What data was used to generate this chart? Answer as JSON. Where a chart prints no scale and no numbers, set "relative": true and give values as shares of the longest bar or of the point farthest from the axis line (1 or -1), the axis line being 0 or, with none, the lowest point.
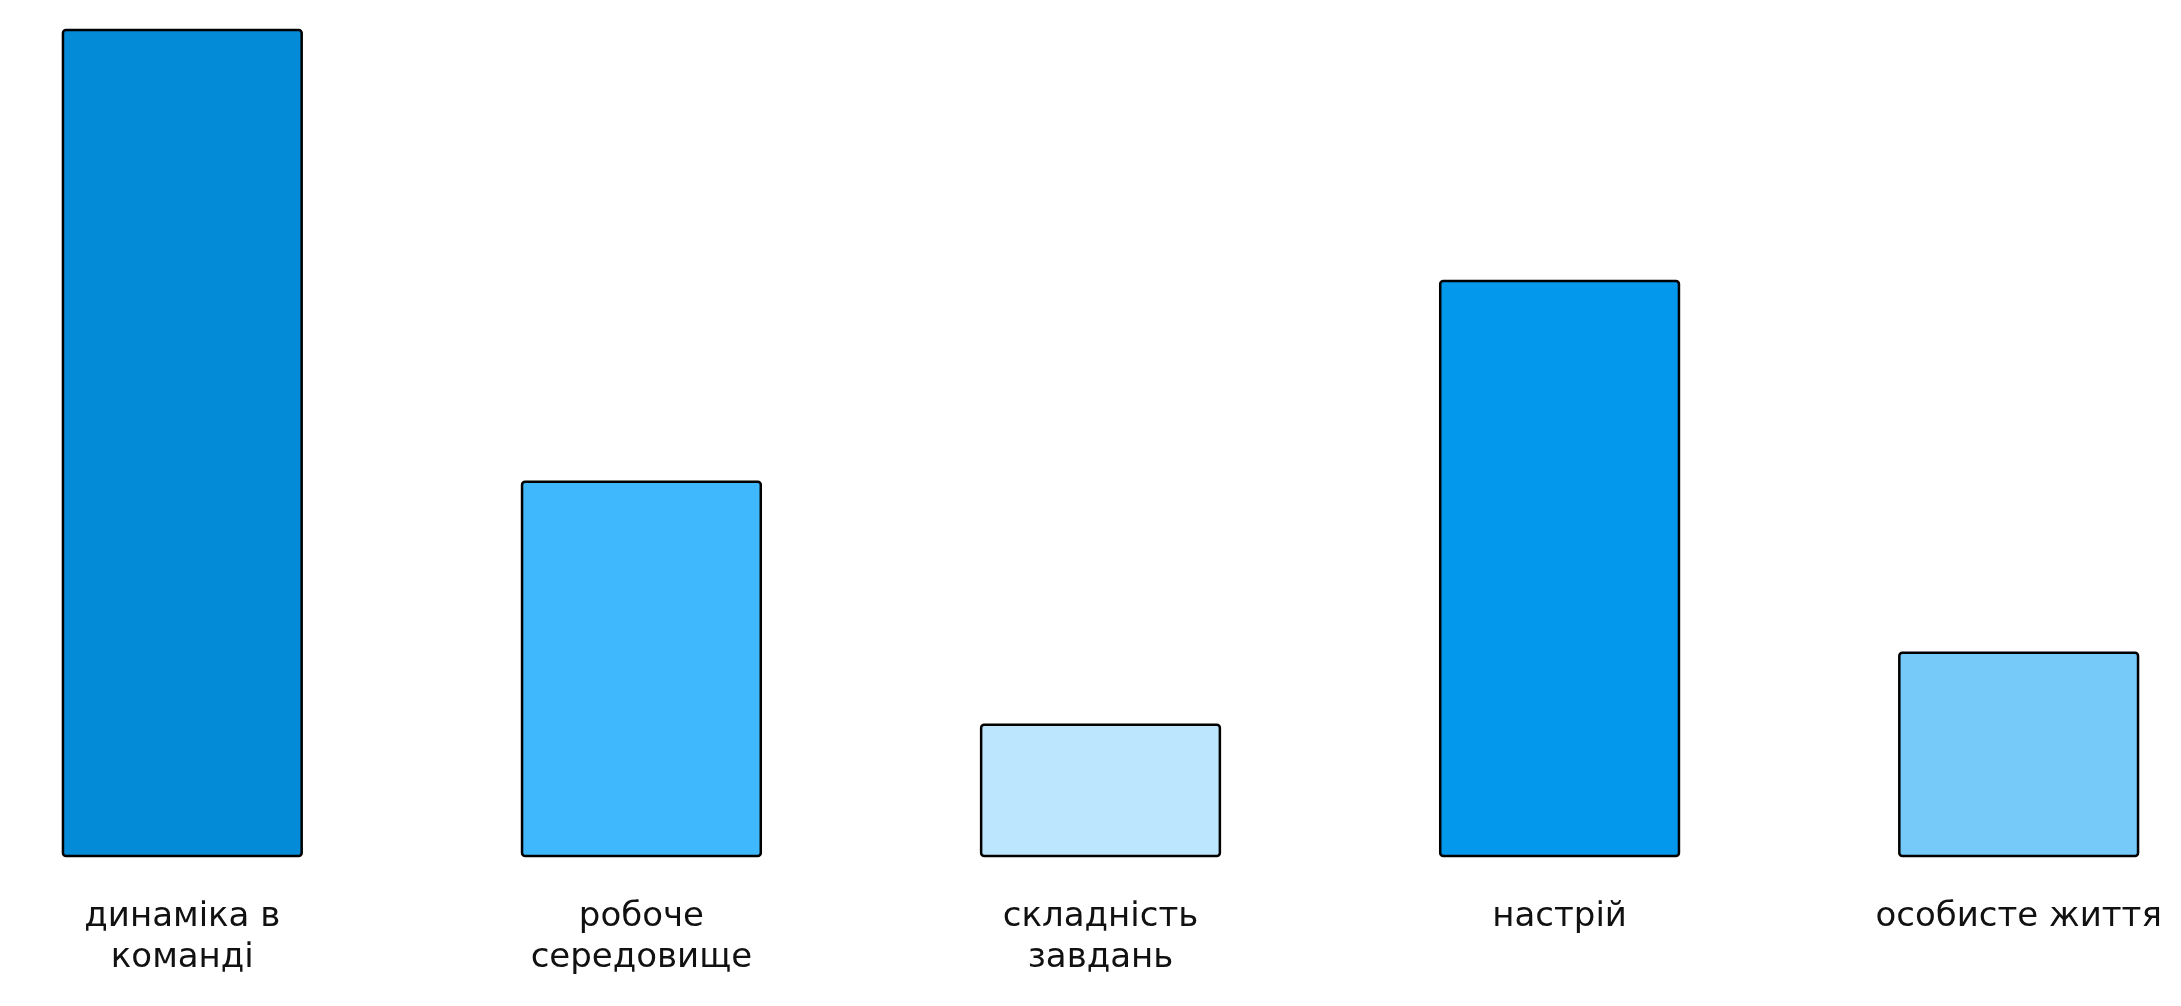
{
  "chart_data": {
    "type": "bar",
    "relative": true,
    "categories": [
      "динаміка в команді",
      "робоче середовище",
      "складність завдань",
      "настрій",
      "особисте життя"
    ],
    "values": [
      1,
      0.453,
      0.159,
      0.696,
      0.246
    ],
    "colors": [
      "#038bd8",
      "#40b8fe",
      "#bbe6fe",
      "#0398eb",
      "#75cafa"
    ]
  }
}
